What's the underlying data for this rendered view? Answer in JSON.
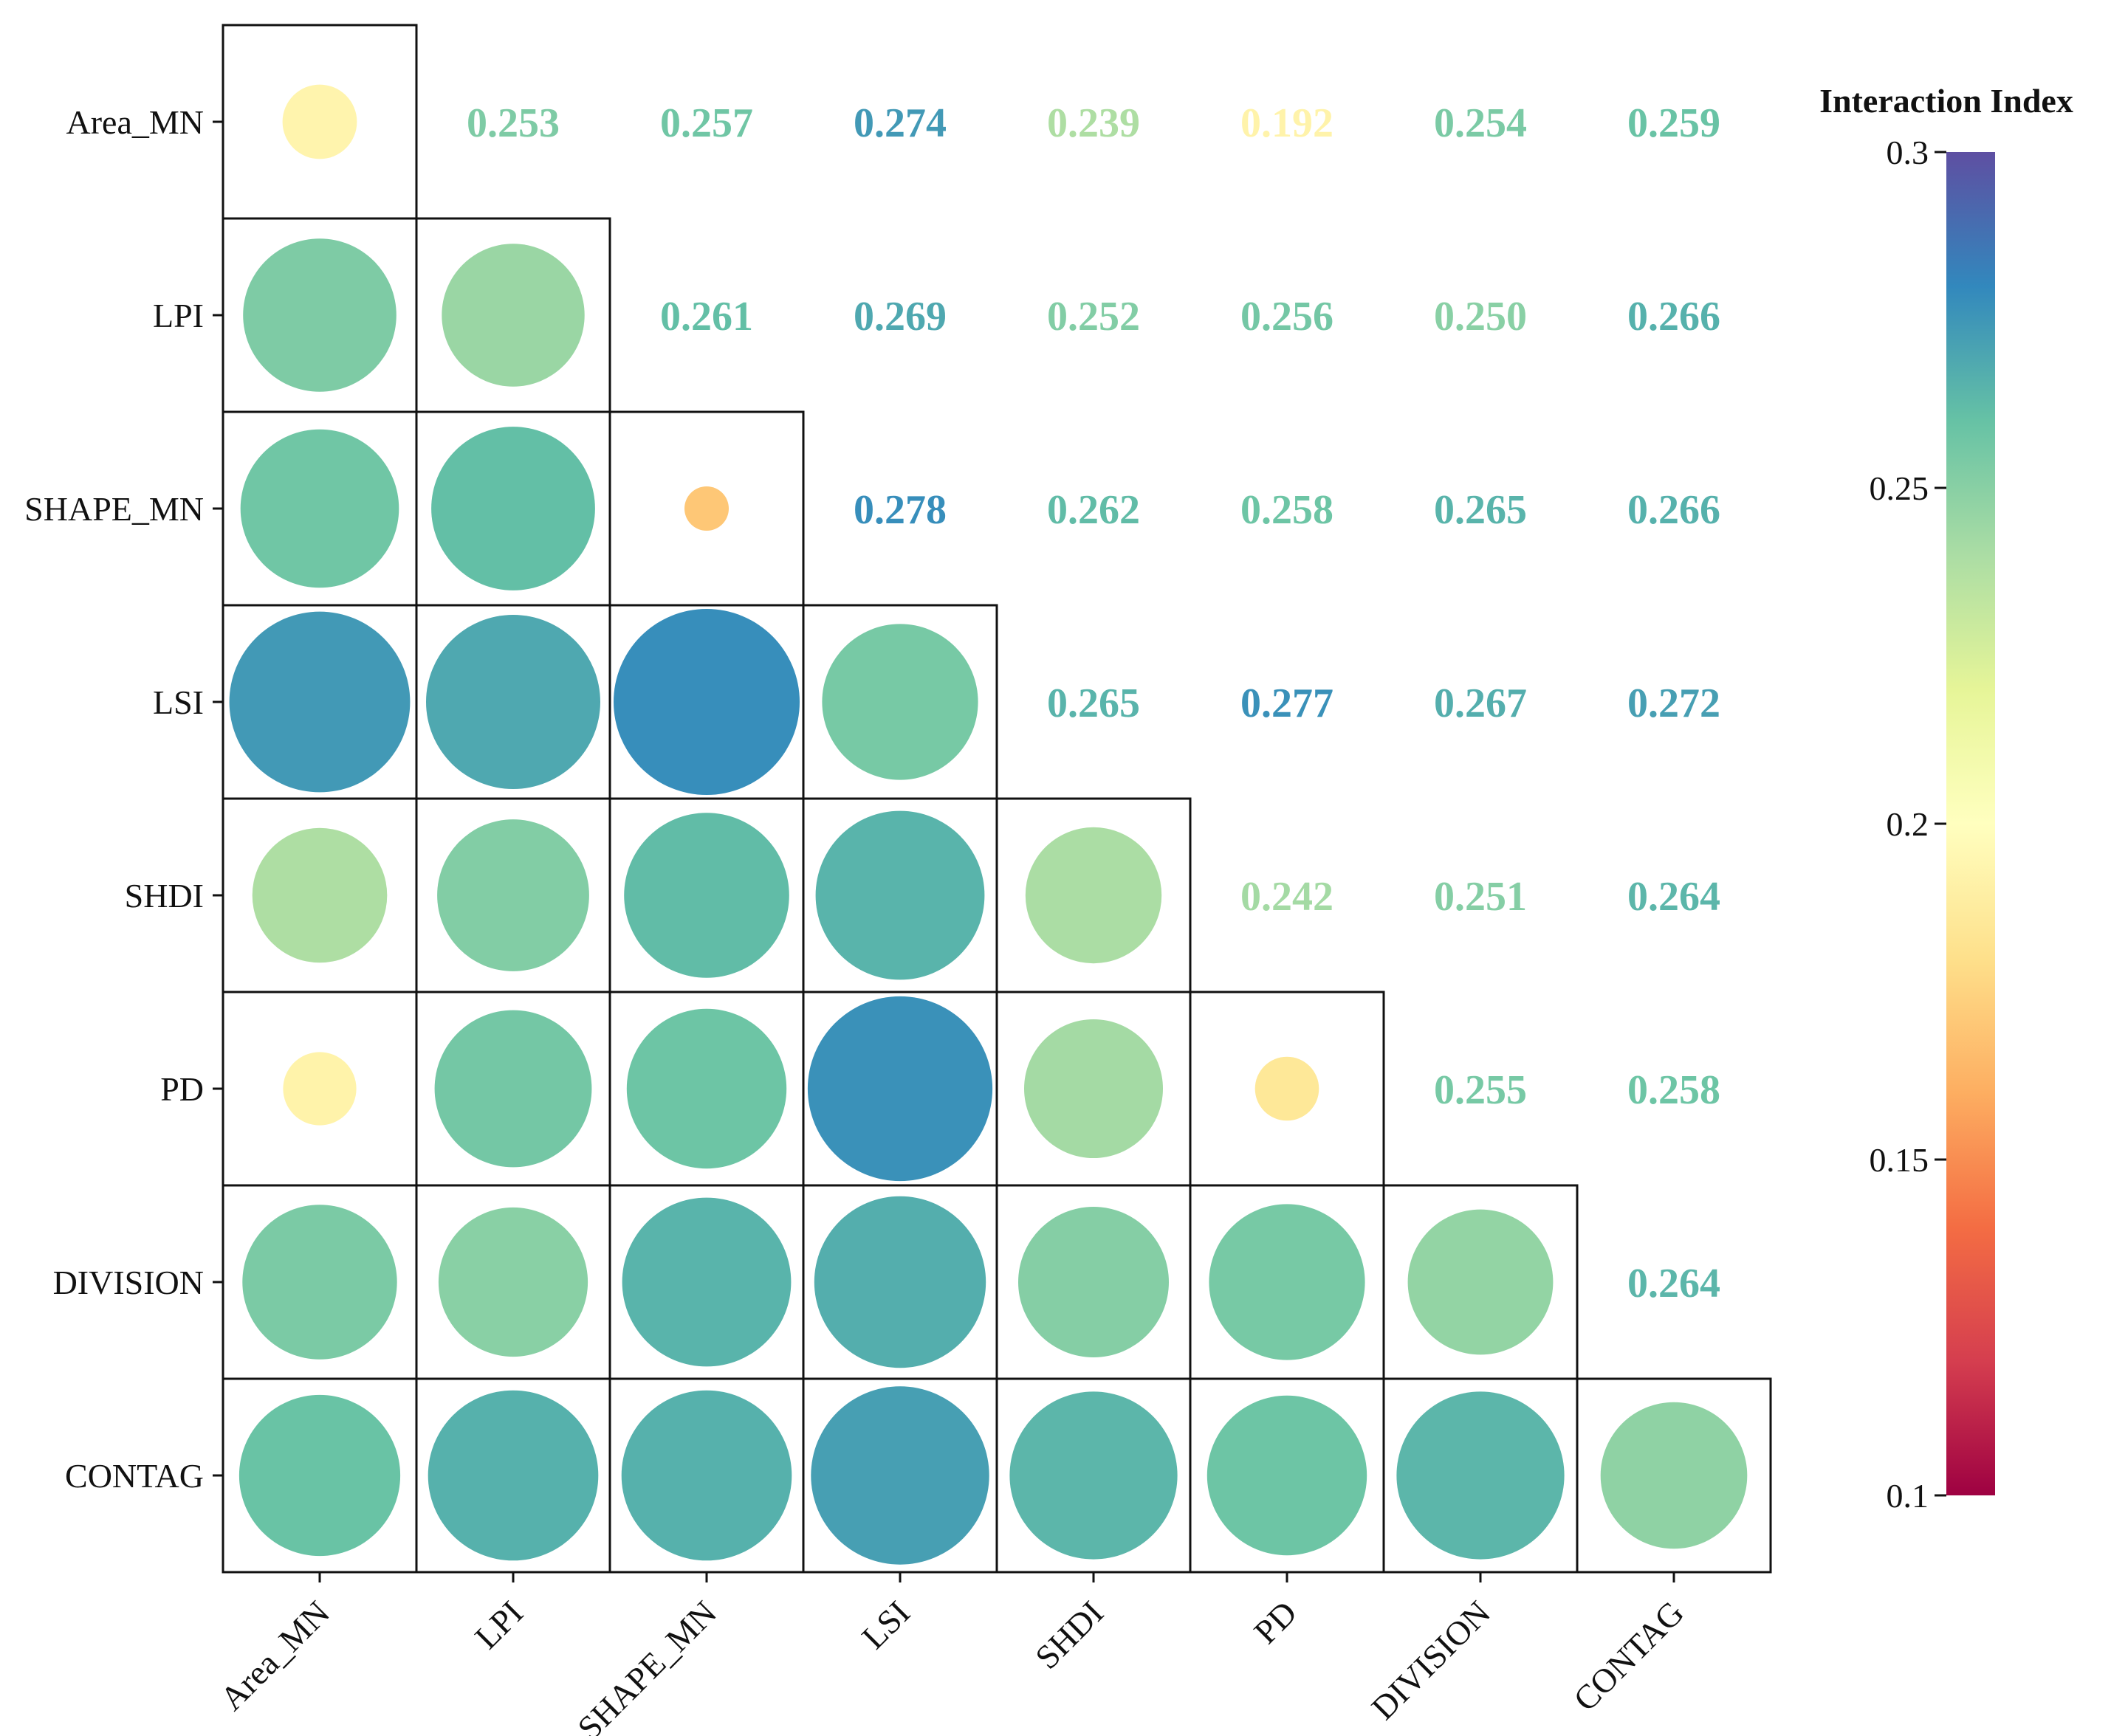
{
  "chart_data": {
    "type": "heatmap",
    "variables": [
      "Area_MN",
      "LPI",
      "SHAPE_MN",
      "LSI",
      "SHDI",
      "PD",
      "DIVISION",
      "CONTAG"
    ],
    "matrix": [
      [
        0.193,
        0.253,
        0.257,
        0.274,
        0.239,
        0.192,
        0.254,
        0.259
      ],
      [
        0.253,
        0.245,
        0.261,
        0.269,
        0.252,
        0.256,
        0.25,
        0.266
      ],
      [
        0.257,
        0.261,
        0.17,
        0.278,
        0.262,
        0.258,
        0.265,
        0.266
      ],
      [
        0.274,
        0.269,
        0.278,
        0.255,
        0.265,
        0.277,
        0.267,
        0.272
      ],
      [
        0.239,
        0.252,
        0.262,
        0.265,
        0.24,
        0.242,
        0.251,
        0.264
      ],
      [
        0.192,
        0.256,
        0.258,
        0.277,
        0.242,
        0.185,
        0.255,
        0.258
      ],
      [
        0.254,
        0.25,
        0.265,
        0.267,
        0.251,
        0.255,
        0.247,
        0.264
      ],
      [
        0.259,
        0.266,
        0.266,
        0.272,
        0.264,
        0.258,
        0.264,
        0.248
      ]
    ],
    "labels": {
      "0": {
        "1": "0.253",
        "2": "0.257",
        "3": "0.274",
        "4": "0.239",
        "5": "0.192",
        "6": "0.254",
        "7": "0.259"
      },
      "1": {
        "2": "0.261",
        "3": "0.269",
        "4": "0.252",
        "5": "0.256",
        "6": "0.250",
        "7": "0.266"
      },
      "2": {
        "3": "0.278",
        "4": "0.262",
        "5": "0.258",
        "6": "0.265",
        "7": "0.266"
      },
      "3": {
        "4": "0.265",
        "5": "0.277",
        "6": "0.267",
        "7": "0.272"
      },
      "4": {
        "5": "0.242",
        "6": "0.251",
        "7": "0.264"
      },
      "5": {
        "6": "0.255",
        "7": "0.258"
      },
      "6": {
        "7": "0.264"
      }
    },
    "colorbar": {
      "title": "Interaction Index",
      "min": 0.1,
      "max": 0.3,
      "ticks": [
        0.3,
        0.25,
        0.2,
        0.15,
        0.1
      ],
      "tick_labels": [
        "0.3",
        "0.25",
        "0.2",
        "0.15",
        "0.1"
      ],
      "colormap": "Spectral",
      "colors": [
        "#9e0142",
        "#d53e4f",
        "#f46d43",
        "#fdae61",
        "#fee08b",
        "#ffffbf",
        "#e6f598",
        "#abdda4",
        "#66c2a5",
        "#3288bd",
        "#5e4fa2"
      ]
    },
    "grid": "lower-triangle boxes",
    "legend_position": "right"
  }
}
